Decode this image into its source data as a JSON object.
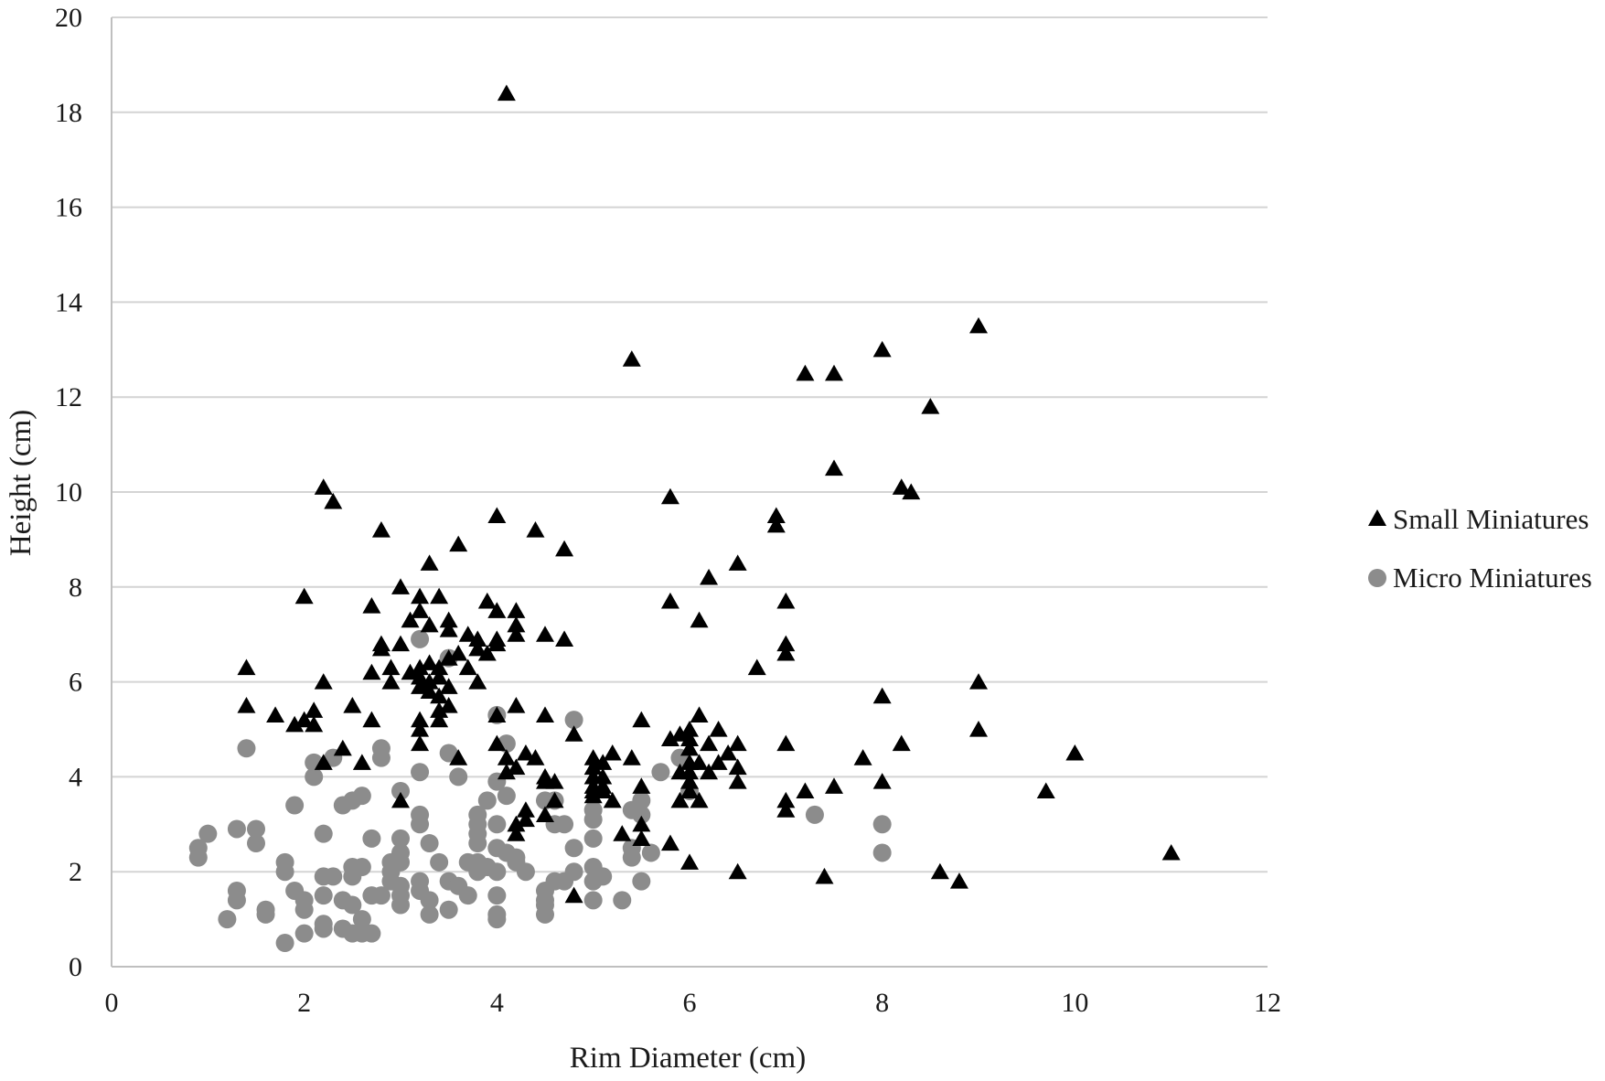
{
  "chart_data": {
    "type": "scatter",
    "title": "",
    "xlabel": "Rim Diameter (cm)",
    "ylabel": "Height (cm)",
    "xlim": [
      0,
      12
    ],
    "ylim": [
      0,
      20
    ],
    "x_ticks": [
      "0",
      "2",
      "4",
      "6",
      "8",
      "10",
      "12"
    ],
    "y_ticks": [
      "0",
      "2",
      "4",
      "6",
      "8",
      "10",
      "12",
      "14",
      "16",
      "18",
      "20"
    ],
    "grid": "horizontal",
    "legend_position": "right",
    "series": [
      {
        "name": "Small Miniatures",
        "marker": "triangle",
        "color": "#000000",
        "points": [
          [
            1.4,
            6.3
          ],
          [
            1.4,
            5.5
          ],
          [
            1.7,
            5.3
          ],
          [
            1.9,
            5.1
          ],
          [
            2.0,
            5.2
          ],
          [
            2.0,
            7.8
          ],
          [
            2.1,
            5.4
          ],
          [
            2.1,
            5.1
          ],
          [
            2.2,
            6.0
          ],
          [
            2.2,
            10.1
          ],
          [
            2.3,
            9.8
          ],
          [
            2.2,
            4.3
          ],
          [
            2.4,
            4.6
          ],
          [
            2.5,
            5.5
          ],
          [
            2.6,
            4.3
          ],
          [
            2.7,
            7.6
          ],
          [
            2.7,
            6.2
          ],
          [
            2.7,
            5.2
          ],
          [
            2.8,
            9.2
          ],
          [
            2.8,
            6.7
          ],
          [
            2.8,
            6.8
          ],
          [
            2.9,
            6.3
          ],
          [
            2.9,
            6.0
          ],
          [
            3.0,
            8.0
          ],
          [
            3.0,
            6.8
          ],
          [
            3.0,
            3.5
          ],
          [
            3.1,
            7.3
          ],
          [
            3.1,
            6.2
          ],
          [
            3.2,
            7.8
          ],
          [
            3.2,
            7.5
          ],
          [
            3.2,
            6.3
          ],
          [
            3.2,
            6.1
          ],
          [
            3.2,
            5.9
          ],
          [
            3.2,
            5.2
          ],
          [
            3.2,
            5.0
          ],
          [
            3.2,
            4.7
          ],
          [
            3.3,
            8.5
          ],
          [
            3.3,
            6.4
          ],
          [
            3.3,
            6.0
          ],
          [
            3.3,
            5.8
          ],
          [
            3.3,
            7.2
          ],
          [
            3.4,
            7.8
          ],
          [
            3.4,
            6.3
          ],
          [
            3.4,
            6.1
          ],
          [
            3.4,
            5.7
          ],
          [
            3.4,
            5.4
          ],
          [
            3.4,
            5.2
          ],
          [
            3.5,
            7.3
          ],
          [
            3.5,
            7.1
          ],
          [
            3.5,
            6.5
          ],
          [
            3.5,
            5.9
          ],
          [
            3.5,
            5.5
          ],
          [
            3.6,
            8.9
          ],
          [
            3.6,
            6.6
          ],
          [
            3.6,
            4.4
          ],
          [
            3.7,
            7.0
          ],
          [
            3.7,
            6.3
          ],
          [
            3.8,
            6.9
          ],
          [
            3.8,
            6.7
          ],
          [
            3.8,
            6.0
          ],
          [
            3.9,
            7.7
          ],
          [
            3.9,
            6.6
          ],
          [
            4.0,
            9.5
          ],
          [
            4.0,
            7.5
          ],
          [
            4.0,
            6.9
          ],
          [
            4.0,
            6.8
          ],
          [
            4.0,
            5.3
          ],
          [
            4.0,
            4.7
          ],
          [
            4.1,
            18.4
          ],
          [
            4.1,
            4.4
          ],
          [
            4.1,
            4.1
          ],
          [
            4.2,
            7.5
          ],
          [
            4.2,
            7.2
          ],
          [
            4.2,
            7.0
          ],
          [
            4.2,
            5.5
          ],
          [
            4.2,
            4.2
          ],
          [
            4.2,
            3.0
          ],
          [
            4.2,
            2.8
          ],
          [
            4.3,
            4.5
          ],
          [
            4.3,
            3.3
          ],
          [
            4.3,
            3.1
          ],
          [
            4.4,
            9.2
          ],
          [
            4.4,
            4.4
          ],
          [
            4.5,
            7.0
          ],
          [
            4.5,
            5.3
          ],
          [
            4.5,
            4.0
          ],
          [
            4.5,
            3.9
          ],
          [
            4.5,
            3.2
          ],
          [
            4.6,
            3.9
          ],
          [
            4.6,
            3.5
          ],
          [
            4.7,
            8.8
          ],
          [
            4.7,
            6.9
          ],
          [
            4.8,
            4.9
          ],
          [
            4.8,
            1.5
          ],
          [
            5.0,
            4.4
          ],
          [
            5.0,
            4.2
          ],
          [
            5.0,
            4.0
          ],
          [
            5.0,
            3.8
          ],
          [
            5.0,
            3.7
          ],
          [
            5.0,
            3.6
          ],
          [
            5.1,
            4.3
          ],
          [
            5.1,
            4.0
          ],
          [
            5.1,
            3.8
          ],
          [
            5.1,
            3.7
          ],
          [
            5.2,
            4.5
          ],
          [
            5.2,
            3.5
          ],
          [
            5.3,
            2.8
          ],
          [
            5.4,
            12.8
          ],
          [
            5.4,
            4.4
          ],
          [
            5.5,
            5.2
          ],
          [
            5.5,
            3.8
          ],
          [
            5.5,
            3.0
          ],
          [
            5.5,
            2.7
          ],
          [
            5.8,
            9.9
          ],
          [
            5.8,
            7.7
          ],
          [
            5.8,
            4.8
          ],
          [
            5.8,
            2.6
          ],
          [
            5.9,
            4.9
          ],
          [
            5.9,
            4.1
          ],
          [
            5.9,
            3.5
          ],
          [
            6.0,
            5.0
          ],
          [
            6.0,
            4.8
          ],
          [
            6.0,
            4.6
          ],
          [
            6.0,
            4.3
          ],
          [
            6.0,
            4.1
          ],
          [
            6.0,
            3.9
          ],
          [
            6.0,
            3.7
          ],
          [
            6.0,
            2.2
          ],
          [
            6.1,
            7.3
          ],
          [
            6.1,
            5.3
          ],
          [
            6.1,
            4.3
          ],
          [
            6.1,
            3.5
          ],
          [
            6.2,
            8.2
          ],
          [
            6.2,
            4.7
          ],
          [
            6.2,
            4.1
          ],
          [
            6.3,
            5.0
          ],
          [
            6.3,
            4.3
          ],
          [
            6.4,
            4.5
          ],
          [
            6.5,
            8.5
          ],
          [
            6.5,
            4.7
          ],
          [
            6.5,
            4.2
          ],
          [
            6.5,
            3.9
          ],
          [
            6.5,
            2.0
          ],
          [
            6.7,
            6.3
          ],
          [
            6.9,
            9.5
          ],
          [
            6.9,
            9.3
          ],
          [
            7.0,
            7.7
          ],
          [
            7.0,
            6.8
          ],
          [
            7.0,
            6.6
          ],
          [
            7.0,
            4.7
          ],
          [
            7.0,
            3.5
          ],
          [
            7.0,
            3.3
          ],
          [
            7.2,
            12.5
          ],
          [
            7.2,
            3.7
          ],
          [
            7.4,
            1.9
          ],
          [
            7.5,
            12.5
          ],
          [
            7.5,
            10.5
          ],
          [
            7.5,
            3.8
          ],
          [
            7.8,
            4.4
          ],
          [
            8.0,
            13.0
          ],
          [
            8.0,
            5.7
          ],
          [
            8.0,
            3.9
          ],
          [
            8.2,
            10.1
          ],
          [
            8.2,
            4.7
          ],
          [
            8.3,
            10.0
          ],
          [
            8.5,
            11.8
          ],
          [
            8.6,
            2.0
          ],
          [
            8.8,
            1.8
          ],
          [
            9.0,
            13.5
          ],
          [
            9.0,
            6.0
          ],
          [
            9.0,
            5.0
          ],
          [
            9.7,
            3.7
          ],
          [
            10.0,
            4.5
          ],
          [
            11.0,
            2.4
          ]
        ]
      },
      {
        "name": "Micro Miniatures",
        "marker": "circle",
        "color": "#8c8c8c",
        "points": [
          [
            0.9,
            2.5
          ],
          [
            0.9,
            2.3
          ],
          [
            1.0,
            2.8
          ],
          [
            1.2,
            1.0
          ],
          [
            1.3,
            2.9
          ],
          [
            1.3,
            1.6
          ],
          [
            1.3,
            1.4
          ],
          [
            1.4,
            4.6
          ],
          [
            1.5,
            2.9
          ],
          [
            1.5,
            2.6
          ],
          [
            1.6,
            1.2
          ],
          [
            1.6,
            1.1
          ],
          [
            1.8,
            2.2
          ],
          [
            1.8,
            2.0
          ],
          [
            1.8,
            0.5
          ],
          [
            1.9,
            3.4
          ],
          [
            1.9,
            1.6
          ],
          [
            2.0,
            1.4
          ],
          [
            2.0,
            1.2
          ],
          [
            2.0,
            0.7
          ],
          [
            2.1,
            4.3
          ],
          [
            2.1,
            4.0
          ],
          [
            2.2,
            2.8
          ],
          [
            2.2,
            1.9
          ],
          [
            2.2,
            1.5
          ],
          [
            2.2,
            0.9
          ],
          [
            2.2,
            0.8
          ],
          [
            2.3,
            4.4
          ],
          [
            2.3,
            1.9
          ],
          [
            2.4,
            3.4
          ],
          [
            2.4,
            1.4
          ],
          [
            2.4,
            0.8
          ],
          [
            2.5,
            3.5
          ],
          [
            2.5,
            2.1
          ],
          [
            2.5,
            1.9
          ],
          [
            2.5,
            1.3
          ],
          [
            2.5,
            0.7
          ],
          [
            2.6,
            3.6
          ],
          [
            2.6,
            2.1
          ],
          [
            2.6,
            1.0
          ],
          [
            2.6,
            0.7
          ],
          [
            2.7,
            2.7
          ],
          [
            2.7,
            1.5
          ],
          [
            2.7,
            0.7
          ],
          [
            2.8,
            4.6
          ],
          [
            2.8,
            4.4
          ],
          [
            2.8,
            1.5
          ],
          [
            2.9,
            2.2
          ],
          [
            2.9,
            2.0
          ],
          [
            2.9,
            1.8
          ],
          [
            3.0,
            3.7
          ],
          [
            3.0,
            2.7
          ],
          [
            3.0,
            2.4
          ],
          [
            3.0,
            2.2
          ],
          [
            3.0,
            1.7
          ],
          [
            3.0,
            1.5
          ],
          [
            3.0,
            1.3
          ],
          [
            3.2,
            6.9
          ],
          [
            3.2,
            4.1
          ],
          [
            3.2,
            3.2
          ],
          [
            3.2,
            3.0
          ],
          [
            3.2,
            1.8
          ],
          [
            3.2,
            1.6
          ],
          [
            3.3,
            2.6
          ],
          [
            3.3,
            1.4
          ],
          [
            3.3,
            1.1
          ],
          [
            3.4,
            2.2
          ],
          [
            3.5,
            6.5
          ],
          [
            3.5,
            4.5
          ],
          [
            3.5,
            1.8
          ],
          [
            3.5,
            1.2
          ],
          [
            3.6,
            4.0
          ],
          [
            3.6,
            1.7
          ],
          [
            3.7,
            2.2
          ],
          [
            3.7,
            1.5
          ],
          [
            3.8,
            3.2
          ],
          [
            3.8,
            3.0
          ],
          [
            3.8,
            2.8
          ],
          [
            3.8,
            2.6
          ],
          [
            3.8,
            2.2
          ],
          [
            3.8,
            2.0
          ],
          [
            3.9,
            3.5
          ],
          [
            3.9,
            2.1
          ],
          [
            4.0,
            5.3
          ],
          [
            4.0,
            3.9
          ],
          [
            4.0,
            3.0
          ],
          [
            4.0,
            2.5
          ],
          [
            4.0,
            2.0
          ],
          [
            4.0,
            1.5
          ],
          [
            4.0,
            1.1
          ],
          [
            4.0,
            1.0
          ],
          [
            4.1,
            4.7
          ],
          [
            4.1,
            3.6
          ],
          [
            4.1,
            2.4
          ],
          [
            4.2,
            2.3
          ],
          [
            4.2,
            2.2
          ],
          [
            4.3,
            2.0
          ],
          [
            4.5,
            3.5
          ],
          [
            4.5,
            1.6
          ],
          [
            4.5,
            1.4
          ],
          [
            4.5,
            1.3
          ],
          [
            4.5,
            1.1
          ],
          [
            4.6,
            3.5
          ],
          [
            4.6,
            3.0
          ],
          [
            4.6,
            1.8
          ],
          [
            4.7,
            3.0
          ],
          [
            4.7,
            1.8
          ],
          [
            4.8,
            5.2
          ],
          [
            4.8,
            2.5
          ],
          [
            4.8,
            2.0
          ],
          [
            5.0,
            3.3
          ],
          [
            5.0,
            3.1
          ],
          [
            5.0,
            2.7
          ],
          [
            5.0,
            2.1
          ],
          [
            5.0,
            1.8
          ],
          [
            5.0,
            1.4
          ],
          [
            5.1,
            1.9
          ],
          [
            5.3,
            1.4
          ],
          [
            5.4,
            3.3
          ],
          [
            5.4,
            2.5
          ],
          [
            5.4,
            2.3
          ],
          [
            5.5,
            3.5
          ],
          [
            5.5,
            3.2
          ],
          [
            5.5,
            1.8
          ],
          [
            5.6,
            2.4
          ],
          [
            5.7,
            4.1
          ],
          [
            5.9,
            4.4
          ],
          [
            6.0,
            3.7
          ],
          [
            7.3,
            3.2
          ],
          [
            8.0,
            3.0
          ],
          [
            8.0,
            2.4
          ]
        ]
      }
    ]
  }
}
